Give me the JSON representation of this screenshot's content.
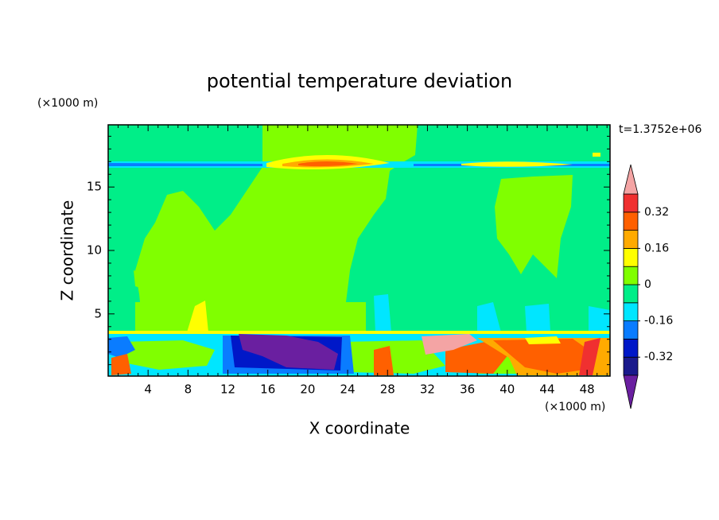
{
  "chart_data": {
    "type": "contour",
    "title": "potential temperature deviation",
    "x_label": "X coordinate",
    "y_label": "Z coordinate",
    "x_unit": "(×1000 m)",
    "y_unit": "(×1000 m)",
    "annotation": "t=1.3752e+06",
    "xlim": [
      0,
      50.3
    ],
    "ylim": [
      0.1,
      19.9
    ],
    "xticks": [
      4,
      8,
      12,
      16,
      20,
      24,
      28,
      32,
      36,
      40,
      44,
      48
    ],
    "yticks": [
      5,
      10,
      15
    ],
    "xminorticks": [
      1,
      2,
      3,
      5,
      6,
      7,
      9,
      10,
      11,
      13,
      14,
      15,
      17,
      18,
      19,
      21,
      22,
      23,
      25,
      26,
      27,
      29,
      30,
      31,
      33,
      34,
      35,
      37,
      38,
      39,
      41,
      42,
      43,
      45,
      46,
      47,
      49,
      50
    ],
    "yminorticks": [
      1,
      2,
      3,
      4,
      6,
      7,
      8,
      9,
      11,
      12,
      13,
      14,
      16,
      17,
      18,
      19
    ],
    "colorbar": {
      "levels": [
        -0.4,
        -0.32,
        -0.24,
        -0.16,
        -0.08,
        0,
        0.08,
        0.16,
        0.24,
        0.32,
        0.4
      ],
      "colors": [
        "#6a1fa0",
        "#1a1a8c",
        "#0018c8",
        "#0a7cff",
        "#00e6ff",
        "#00ee88",
        "#80ff00",
        "#ffff00",
        "#ffaa00",
        "#ff6000",
        "#f03030",
        "#f4a4a4"
      ],
      "ticks": [
        -0.32,
        -0.16,
        0,
        0.16,
        0.32
      ]
    }
  }
}
